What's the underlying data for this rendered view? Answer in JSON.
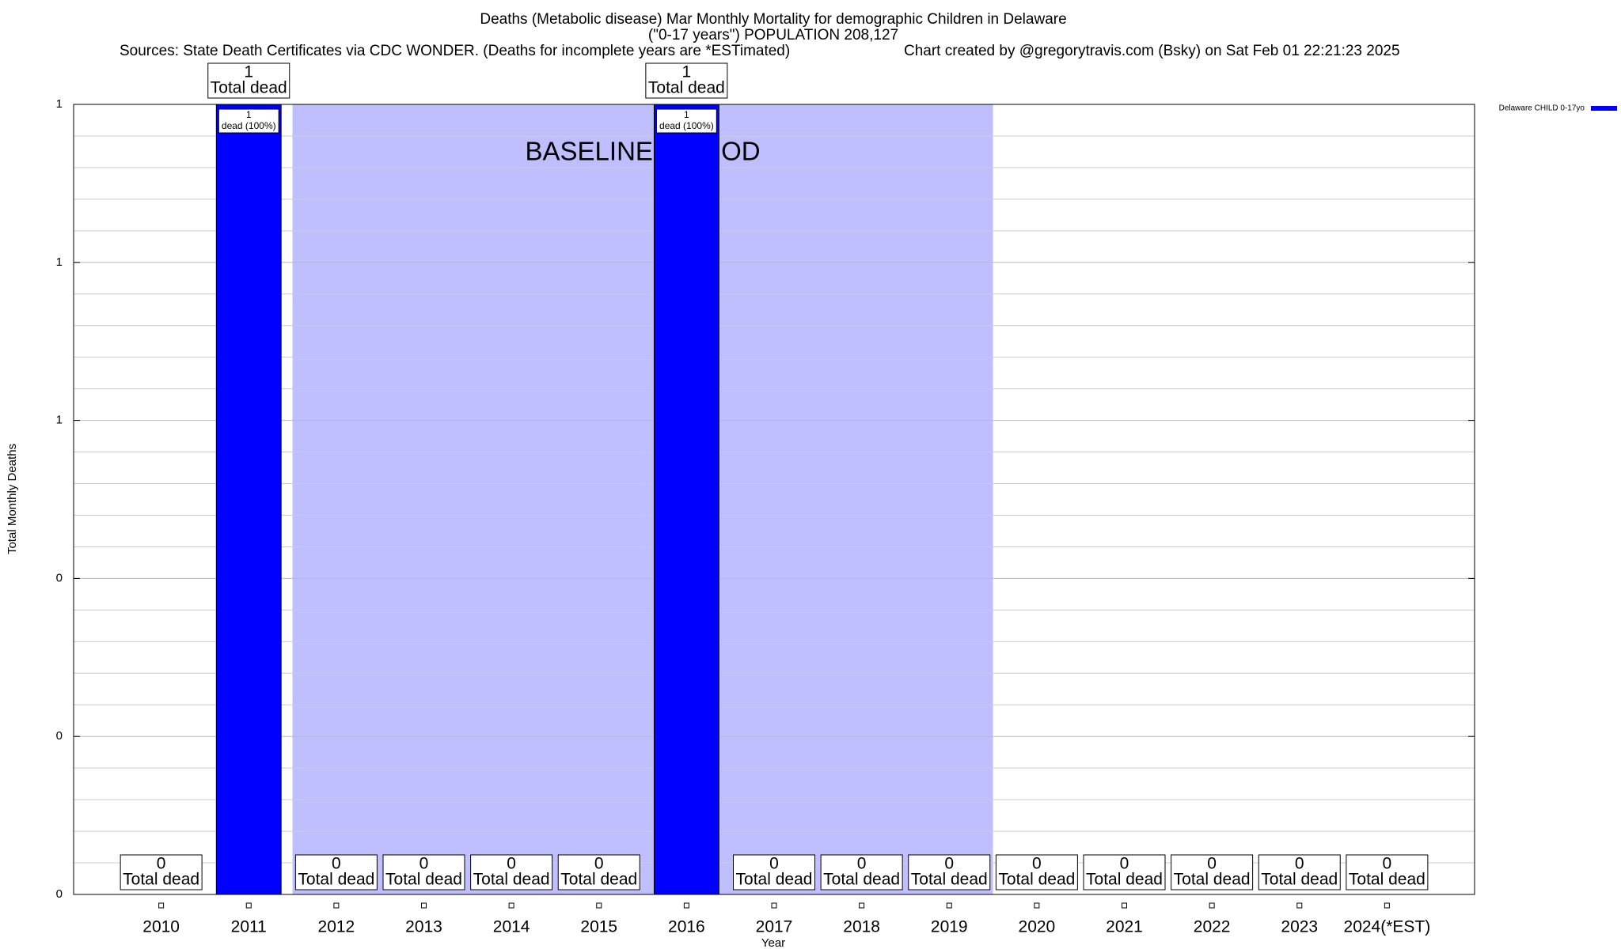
{
  "chart_data": {
    "type": "bar",
    "title": "Deaths (Metabolic disease) Mar Monthly Mortality for demographic Children in Delaware",
    "subtitle": "(\"0-17 years\") POPULATION 208,127",
    "sources": "Sources: State Death Certificates via CDC WONDER. (Deaths for incomplete years are *ESTimated)",
    "credit": "Chart created by @gregorytravis.com (Bsky) on Sat Feb 01 22:21:23 2025",
    "x_label": "Year",
    "y_label": "Total Monthly Deaths",
    "categories": [
      "2010",
      "2011",
      "2012",
      "2013",
      "2014",
      "2015",
      "2016",
      "2017",
      "2018",
      "2019",
      "2020",
      "2021",
      "2022",
      "2023",
      "2024(*EST)"
    ],
    "series": [
      {
        "name": "Delaware CHILD 0-17yo",
        "color": "#0000ff",
        "values": [
          0,
          1,
          0,
          0,
          0,
          0,
          1,
          0,
          0,
          0,
          0,
          0,
          0,
          0,
          0
        ]
      }
    ],
    "value_label_text": "Total dead",
    "inner_labels": [
      null,
      "dead (100%)",
      null,
      null,
      null,
      null,
      "dead (100%)",
      null,
      null,
      null,
      null,
      null,
      null,
      null,
      null
    ],
    "baseline_period": {
      "label": "BASELINE PERIOD",
      "start": "2012",
      "end": "2019",
      "color": "#bfbfff"
    },
    "ylim": [
      0,
      1
    ],
    "yticks": [
      0,
      {
        "value": 0.2,
        "label": "0"
      },
      {
        "value": 0.4,
        "label": "0"
      },
      {
        "value": 0.6,
        "label": "1"
      },
      {
        "value": 0.8,
        "label": "1"
      },
      1
    ],
    "minor_yticks": [
      0.04,
      0.08,
      0.12,
      0.16,
      0.24,
      0.28,
      0.32,
      0.36,
      0.44,
      0.48,
      0.52,
      0.56,
      0.64,
      0.68,
      0.72,
      0.76,
      0.84,
      0.88,
      0.92,
      0.96
    ],
    "grid": true,
    "legend": "top-right"
  }
}
